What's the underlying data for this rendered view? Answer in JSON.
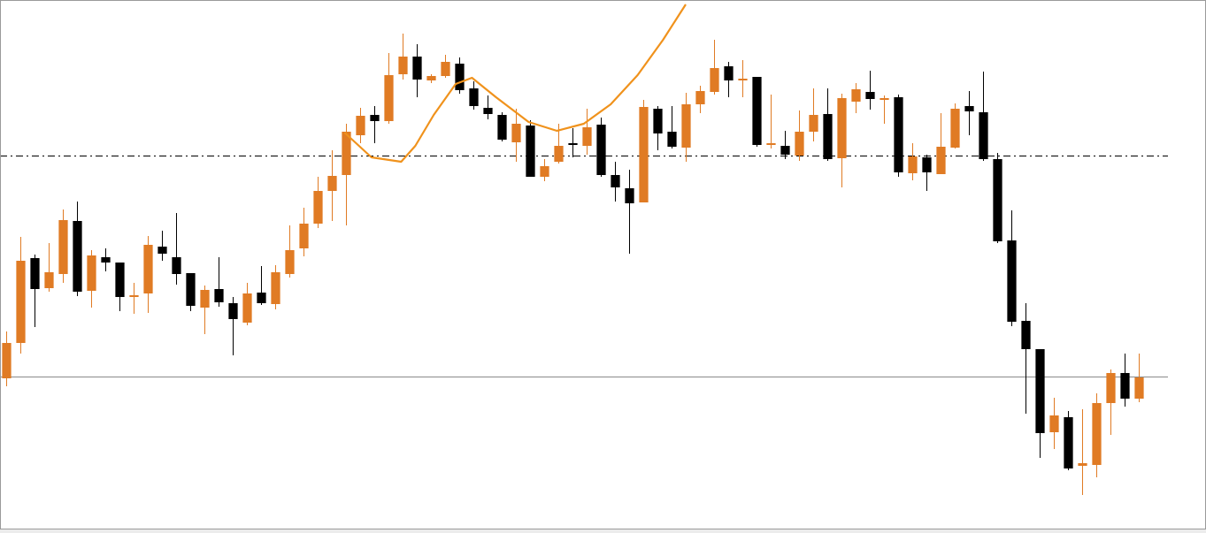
{
  "chart_data": {
    "type": "candlestick",
    "up_color": "#e07b24",
    "down_color": "#000000",
    "ylim": [
      0,
      603
    ],
    "xlim": [
      -0.4375,
      84.75
    ],
    "open": [
      175,
      215,
      311,
      277,
      293,
      353,
      274,
      312,
      306,
      267,
      271,
      324,
      312,
      294,
      255,
      276,
      260,
      238,
      272,
      259,
      293,
      322,
      350,
      387,
      405,
      450,
      473,
      466,
      519,
      539,
      512,
      517,
      531,
      503,
      481,
      473,
      442,
      461,
      403,
      420,
      441,
      438,
      462,
      405,
      390,
      374,
      480,
      454,
      436,
      485,
      499,
      528,
      512,
      516,
      439,
      438,
      427,
      454,
      474,
      424,
      488,
      499,
      490,
      493,
      407,
      425,
      406,
      436,
      483,
      476,
      423,
      331,
      240,
      208,
      114,
      131,
      76,
      77,
      147,
      181,
      152
    ],
    "high": [
      228,
      335,
      315,
      328,
      366,
      375,
      320,
      322,
      306,
      283,
      336,
      342,
      362,
      294,
      280,
      312,
      267,
      283,
      302,
      303,
      348,
      368,
      403,
      433,
      463,
      481,
      483,
      543,
      565,
      553,
      519,
      541,
      538,
      511,
      495,
      476,
      480,
      467,
      423,
      463,
      458,
      480,
      470,
      420,
      411,
      490,
      483,
      483,
      498,
      506,
      558,
      533,
      535,
      516,
      496,
      455,
      478,
      503,
      503,
      497,
      509,
      523,
      495,
      496,
      441,
      428,
      475,
      486,
      500,
      522,
      430,
      365,
      260,
      208,
      153,
      138,
      140,
      158,
      185,
      203,
      203
    ],
    "low": [
      166,
      203,
      233,
      273,
      283,
      268,
      255,
      296,
      251,
      248,
      249,
      308,
      281,
      251,
      225,
      256,
      201,
      235,
      258,
      253,
      289,
      313,
      345,
      353,
      348,
      441,
      441,
      463,
      513,
      493,
      509,
      515,
      497,
      479,
      468,
      443,
      420,
      403,
      398,
      418,
      425,
      428,
      403,
      375,
      316,
      374,
      433,
      435,
      420,
      475,
      496,
      493,
      493,
      437,
      435,
      423,
      421,
      443,
      421,
      391,
      475,
      479,
      463,
      403,
      399,
      387,
      406,
      435,
      450,
      421,
      328,
      234,
      135,
      85,
      95,
      71,
      43,
      63,
      111,
      143,
      148
    ],
    "close": [
      215,
      308,
      276,
      295,
      354,
      273,
      314,
      306,
      267,
      269,
      326,
      316,
      293,
      257,
      275,
      261,
      242,
      271,
      260,
      295,
      320,
      350,
      387,
      404,
      454,
      472,
      466,
      518,
      539,
      513,
      517,
      533,
      501,
      483,
      474,
      445,
      463,
      403,
      415,
      438,
      439,
      459,
      405,
      391,
      373,
      482,
      452,
      437,
      485,
      500,
      526,
      512,
      514,
      439,
      441,
      428,
      454,
      473,
      423,
      492,
      502,
      491,
      492,
      408,
      426,
      408,
      437,
      480,
      477,
      423,
      330,
      239,
      208,
      113,
      133,
      73,
      79,
      147,
      181,
      152,
      176
    ],
    "overlay": {
      "type": "line",
      "color": "#f0921c",
      "x": [
        23.9,
        25.8,
        27.9,
        28.9,
        30.2,
        31.75,
        32.9,
        34.6,
        36.9,
        38.9,
        40.8,
        42.7,
        44.6,
        46.4,
        48
      ],
      "values": [
        453,
        425,
        420,
        438,
        473,
        508,
        515,
        493,
        465,
        455,
        463,
        485,
        518,
        558,
        598
      ]
    },
    "hlines": [
      {
        "value": 427,
        "style": "dash-dot",
        "color": "#000000"
      },
      {
        "value": 177,
        "style": "solid",
        "color": "#8a8a8a"
      }
    ]
  }
}
